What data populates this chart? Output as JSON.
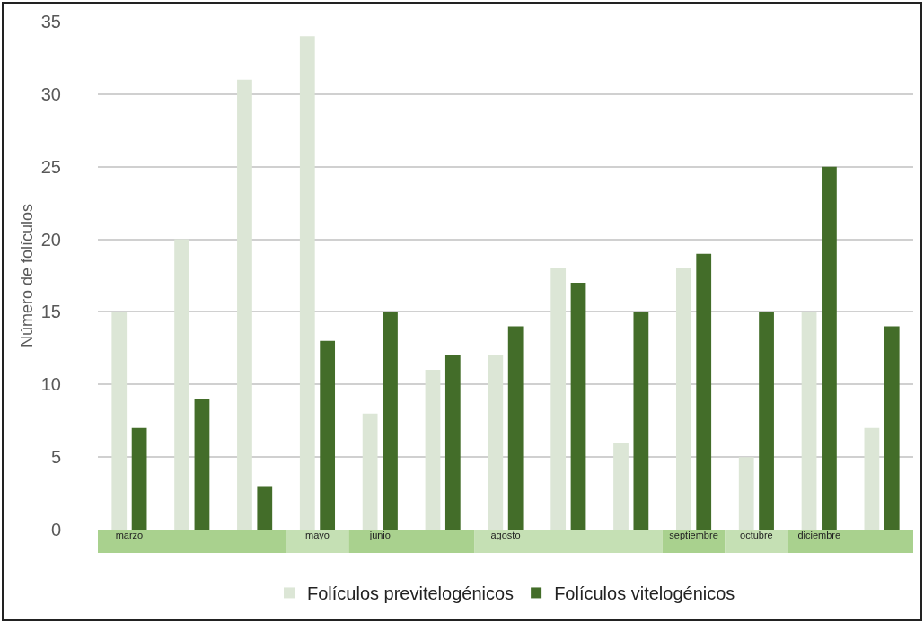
{
  "chart_data": {
    "type": "bar",
    "ylabel": "Número de folículos",
    "categories": [
      "marzo",
      null,
      null,
      "mayo",
      "junio",
      null,
      "agosto",
      null,
      null,
      "septiembre",
      "octubre",
      "diciembre",
      null
    ],
    "series": [
      {
        "name": "Folículos previtelogénicos",
        "color": "#dce6d6",
        "values": [
          15,
          20,
          31,
          34,
          8,
          11,
          12,
          18,
          6,
          18,
          5,
          15,
          7
        ]
      },
      {
        "name": "Folículos vitelogénicos",
        "color": "#436d29",
        "values": [
          7,
          9,
          3,
          13,
          15,
          12,
          14,
          17,
          15,
          19,
          15,
          25,
          14
        ]
      }
    ],
    "ylim": [
      0,
      35
    ],
    "yticks": [
      0,
      5,
      10,
      15,
      20,
      25,
      30,
      35
    ],
    "grid": "y",
    "legend": "bottom"
  }
}
